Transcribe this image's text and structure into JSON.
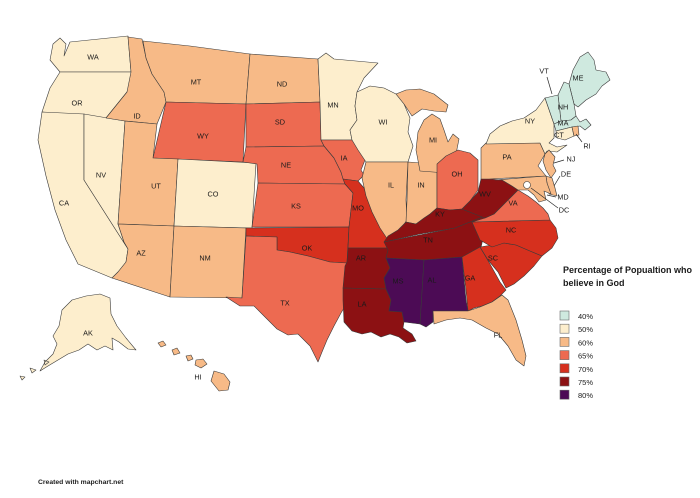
{
  "legend_title": {
    "line1": "Percentage of Popualtion who",
    "line2": "believe in God"
  },
  "attribution": "Created with mapchart.net",
  "legend": [
    {
      "label": "40%",
      "color": "#cfe9df"
    },
    {
      "label": "50%",
      "color": "#fdeecd"
    },
    {
      "label": "60%",
      "color": "#f7ba87"
    },
    {
      "label": "65%",
      "color": "#ed6a51"
    },
    {
      "label": "70%",
      "color": "#d6301e"
    },
    {
      "label": "75%",
      "color": "#8c1113"
    },
    {
      "label": "80%",
      "color": "#4c0b55"
    }
  ],
  "states": [
    {
      "abbr": "WA",
      "value": "50%"
    },
    {
      "abbr": "OR",
      "value": "50%"
    },
    {
      "abbr": "CA",
      "value": "50%"
    },
    {
      "abbr": "NV",
      "value": "50%"
    },
    {
      "abbr": "ID",
      "value": "60%"
    },
    {
      "abbr": "MT",
      "value": "60%"
    },
    {
      "abbr": "WY",
      "value": "65%"
    },
    {
      "abbr": "UT",
      "value": "60%"
    },
    {
      "abbr": "CO",
      "value": "50%"
    },
    {
      "abbr": "AZ",
      "value": "60%"
    },
    {
      "abbr": "NM",
      "value": "60%"
    },
    {
      "abbr": "ND",
      "value": "60%"
    },
    {
      "abbr": "SD",
      "value": "65%"
    },
    {
      "abbr": "NE",
      "value": "65%"
    },
    {
      "abbr": "KS",
      "value": "65%"
    },
    {
      "abbr": "OK",
      "value": "70%"
    },
    {
      "abbr": "TX",
      "value": "65%"
    },
    {
      "abbr": "MN",
      "value": "50%"
    },
    {
      "abbr": "IA",
      "value": "65%"
    },
    {
      "abbr": "MO",
      "value": "70%"
    },
    {
      "abbr": "AR",
      "value": "75%"
    },
    {
      "abbr": "LA",
      "value": "75%"
    },
    {
      "abbr": "WI",
      "value": "50%"
    },
    {
      "abbr": "IL",
      "value": "60%"
    },
    {
      "abbr": "IN",
      "value": "60%"
    },
    {
      "abbr": "MI",
      "value": "60%"
    },
    {
      "abbr": "OH",
      "value": "65%"
    },
    {
      "abbr": "KY",
      "value": "75%"
    },
    {
      "abbr": "TN",
      "value": "75%"
    },
    {
      "abbr": "MS",
      "value": "80%"
    },
    {
      "abbr": "AL",
      "value": "80%"
    },
    {
      "abbr": "GA",
      "value": "70%"
    },
    {
      "abbr": "FL",
      "value": "60%"
    },
    {
      "abbr": "SC",
      "value": "70%"
    },
    {
      "abbr": "NC",
      "value": "70%"
    },
    {
      "abbr": "VA",
      "value": "65%"
    },
    {
      "abbr": "WV",
      "value": "75%"
    },
    {
      "abbr": "PA",
      "value": "60%"
    },
    {
      "abbr": "NY",
      "value": "50%"
    },
    {
      "abbr": "NJ",
      "value": "60%"
    },
    {
      "abbr": "DE",
      "value": "60%"
    },
    {
      "abbr": "MD",
      "value": "60%"
    },
    {
      "abbr": "DC",
      "value": ""
    },
    {
      "abbr": "ME",
      "value": "40%"
    },
    {
      "abbr": "NH",
      "value": "40%"
    },
    {
      "abbr": "VT",
      "value": "40%"
    },
    {
      "abbr": "MA",
      "value": "40%"
    },
    {
      "abbr": "CT",
      "value": "50%"
    },
    {
      "abbr": "RI",
      "value": "60%"
    },
    {
      "abbr": "AK",
      "value": "50%"
    },
    {
      "abbr": "HI",
      "value": "60%"
    }
  ]
}
